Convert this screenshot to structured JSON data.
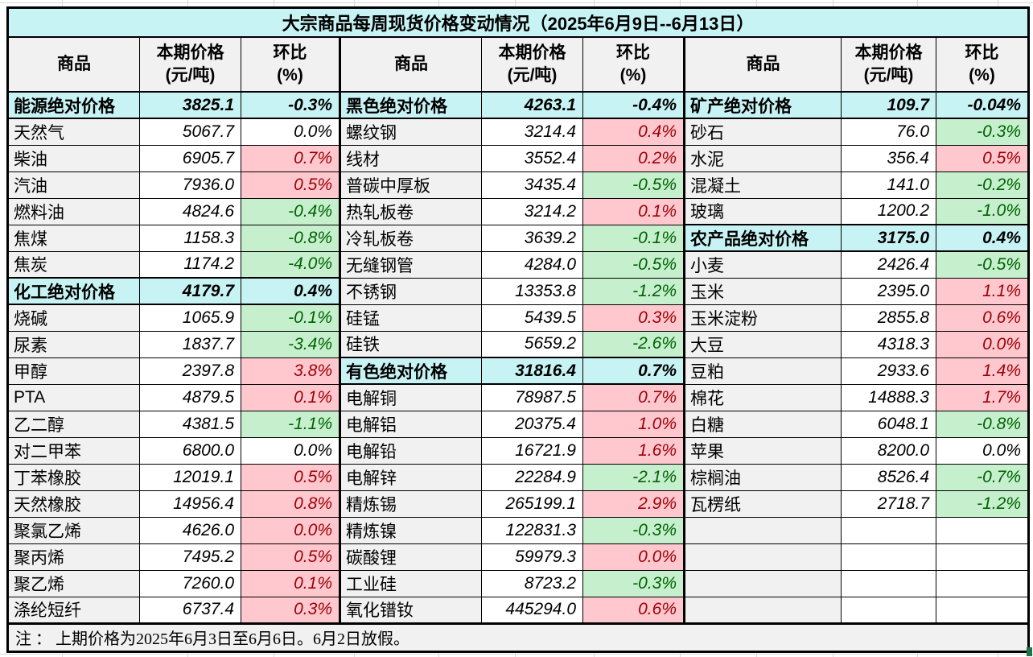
{
  "title": "大宗商品每周现货价格变动情况（2025年6月9日--6月13日）",
  "header": {
    "name": "商品",
    "price_line1": "本期价格",
    "price_line2": "(元/吨)",
    "pct_line1": "环比",
    "pct_line2": "(%)"
  },
  "note": "注 ： 上期价格为2025年6月3日至6月6日。6月2日放假。",
  "colors": {
    "cyan": "#c8f3f4",
    "gray": "#f1f1f1",
    "pink": "#ffc7ce",
    "red": "#9c0006",
    "lightgreen": "#c6efce",
    "green": "#006100",
    "excelgreen": "#217346"
  },
  "groups": [
    {
      "rows": [
        {
          "type": "section",
          "name": "能源绝对价格",
          "price": "3825.1",
          "pct": "-0.3%",
          "color": "plain"
        },
        {
          "type": "item",
          "name": "天然气",
          "price": "5067.7",
          "pct": "0.0%",
          "color": "plain"
        },
        {
          "type": "item",
          "name": "柴油",
          "price": "6905.7",
          "pct": "0.7%",
          "color": "red"
        },
        {
          "type": "item",
          "name": "汽油",
          "price": "7936.0",
          "pct": "0.5%",
          "color": "red"
        },
        {
          "type": "item",
          "name": "燃料油",
          "price": "4824.6",
          "pct": "-0.4%",
          "color": "green"
        },
        {
          "type": "item",
          "name": "焦煤",
          "price": "1158.3",
          "pct": "-0.8%",
          "color": "green"
        },
        {
          "type": "item",
          "name": "焦炭",
          "price": "1174.2",
          "pct": "-4.0%",
          "color": "green"
        },
        {
          "type": "section",
          "name": "化工绝对价格",
          "price": "4179.7",
          "pct": "0.4%",
          "color": "plain"
        },
        {
          "type": "item",
          "name": "烧碱",
          "price": "1065.9",
          "pct": "-0.1%",
          "color": "green"
        },
        {
          "type": "item",
          "name": "尿素",
          "price": "1837.7",
          "pct": "-3.4%",
          "color": "green"
        },
        {
          "type": "item",
          "name": "甲醇",
          "price": "2397.8",
          "pct": "3.8%",
          "color": "red"
        },
        {
          "type": "item",
          "name": "PTA",
          "price": "4879.5",
          "pct": "0.1%",
          "color": "red"
        },
        {
          "type": "item",
          "name": "乙二醇",
          "price": "4381.5",
          "pct": "-1.1%",
          "color": "green"
        },
        {
          "type": "item",
          "name": "对二甲苯",
          "price": "6800.0",
          "pct": "0.0%",
          "color": "plain"
        },
        {
          "type": "item",
          "name": "丁苯橡胶",
          "price": "12019.1",
          "pct": "0.5%",
          "color": "red"
        },
        {
          "type": "item",
          "name": "天然橡胶",
          "price": "14956.4",
          "pct": "0.8%",
          "color": "red"
        },
        {
          "type": "item",
          "name": "聚氯乙烯",
          "price": "4626.0",
          "pct": "0.0%",
          "color": "red"
        },
        {
          "type": "item",
          "name": "聚丙烯",
          "price": "7495.2",
          "pct": "0.5%",
          "color": "red"
        },
        {
          "type": "item",
          "name": "聚乙烯",
          "price": "7260.0",
          "pct": "0.1%",
          "color": "red"
        },
        {
          "type": "item",
          "name": "涤纶短纤",
          "price": "6737.4",
          "pct": "0.3%",
          "color": "red"
        }
      ]
    },
    {
      "rows": [
        {
          "type": "section",
          "name": "黑色绝对价格",
          "price": "4263.1",
          "pct": "-0.4%",
          "color": "plain"
        },
        {
          "type": "item",
          "name": "螺纹钢",
          "price": "3214.4",
          "pct": "0.4%",
          "color": "red"
        },
        {
          "type": "item",
          "name": "线材",
          "price": "3552.4",
          "pct": "0.2%",
          "color": "red"
        },
        {
          "type": "item",
          "name": "普碳中厚板",
          "price": "3435.4",
          "pct": "-0.5%",
          "color": "green"
        },
        {
          "type": "item",
          "name": "热轧板卷",
          "price": "3214.2",
          "pct": "0.1%",
          "color": "red"
        },
        {
          "type": "item",
          "name": "冷轧板卷",
          "price": "3639.2",
          "pct": "-0.1%",
          "color": "green"
        },
        {
          "type": "item",
          "name": "无缝钢管",
          "price": "4284.0",
          "pct": "-0.5%",
          "color": "green"
        },
        {
          "type": "item",
          "name": "不锈钢",
          "price": "13353.8",
          "pct": "-1.2%",
          "color": "green"
        },
        {
          "type": "item",
          "name": "硅锰",
          "price": "5439.5",
          "pct": "0.3%",
          "color": "red"
        },
        {
          "type": "item",
          "name": "硅铁",
          "price": "5659.2",
          "pct": "-2.6%",
          "color": "green"
        },
        {
          "type": "section",
          "name": "有色绝对价格",
          "price": "31816.4",
          "pct": "0.7%",
          "color": "plain"
        },
        {
          "type": "item",
          "name": "电解铜",
          "price": "78987.5",
          "pct": "0.7%",
          "color": "red"
        },
        {
          "type": "item",
          "name": "电解铝",
          "price": "20375.4",
          "pct": "1.0%",
          "color": "red"
        },
        {
          "type": "item",
          "name": "电解铅",
          "price": "16721.9",
          "pct": "1.6%",
          "color": "red"
        },
        {
          "type": "item",
          "name": "电解锌",
          "price": "22284.9",
          "pct": "-2.1%",
          "color": "green"
        },
        {
          "type": "item",
          "name": "精炼锡",
          "price": "265199.1",
          "pct": "2.9%",
          "color": "red"
        },
        {
          "type": "item",
          "name": "精炼镍",
          "price": "122831.3",
          "pct": "-0.3%",
          "color": "green"
        },
        {
          "type": "item",
          "name": "碳酸锂",
          "price": "59979.3",
          "pct": "0.0%",
          "color": "red"
        },
        {
          "type": "item",
          "name": "工业硅",
          "price": "8723.2",
          "pct": "-0.3%",
          "color": "green"
        },
        {
          "type": "item",
          "name": "氧化镨钕",
          "price": "445294.0",
          "pct": "0.6%",
          "color": "red"
        }
      ]
    },
    {
      "rows": [
        {
          "type": "section",
          "name": "矿产绝对价格",
          "price": "109.7",
          "pct": "-0.04%",
          "color": "plain"
        },
        {
          "type": "item",
          "name": "砂石",
          "price": "76.0",
          "pct": "-0.3%",
          "color": "green"
        },
        {
          "type": "item",
          "name": "水泥",
          "price": "356.4",
          "pct": "0.5%",
          "color": "red"
        },
        {
          "type": "item",
          "name": "混凝土",
          "price": "141.0",
          "pct": "-0.2%",
          "color": "green"
        },
        {
          "type": "item",
          "name": "玻璃",
          "price": "1200.2",
          "pct": "-1.0%",
          "color": "green"
        },
        {
          "type": "section",
          "name": "农产品绝对价格",
          "price": "3175.0",
          "pct": "0.4%",
          "color": "plain"
        },
        {
          "type": "item",
          "name": "小麦",
          "price": "2426.4",
          "pct": "-0.5%",
          "color": "green"
        },
        {
          "type": "item",
          "name": "玉米",
          "price": "2395.0",
          "pct": "1.1%",
          "color": "red"
        },
        {
          "type": "item",
          "name": "玉米淀粉",
          "price": "2855.8",
          "pct": "0.6%",
          "color": "red"
        },
        {
          "type": "item",
          "name": "大豆",
          "price": "4318.3",
          "pct": "0.0%",
          "color": "red"
        },
        {
          "type": "item",
          "name": "豆粕",
          "price": "2933.6",
          "pct": "1.4%",
          "color": "red"
        },
        {
          "type": "item",
          "name": "棉花",
          "price": "14888.3",
          "pct": "1.7%",
          "color": "red"
        },
        {
          "type": "item",
          "name": "白糖",
          "price": "6048.1",
          "pct": "-0.8%",
          "color": "green"
        },
        {
          "type": "item",
          "name": "苹果",
          "price": "8200.0",
          "pct": "0.0%",
          "color": "plain"
        },
        {
          "type": "item",
          "name": "棕榈油",
          "price": "8526.4",
          "pct": "-0.7%",
          "color": "green"
        },
        {
          "type": "item",
          "name": "瓦楞纸",
          "price": "2718.7",
          "pct": "-1.2%",
          "color": "green"
        },
        {
          "type": "empty",
          "name": "",
          "price": "",
          "pct": "",
          "color": "plain"
        },
        {
          "type": "empty",
          "name": "",
          "price": "",
          "pct": "",
          "color": "plain"
        },
        {
          "type": "empty",
          "name": "",
          "price": "",
          "pct": "",
          "color": "plain"
        },
        {
          "type": "empty",
          "name": "",
          "price": "",
          "pct": "",
          "color": "plain"
        }
      ]
    }
  ]
}
